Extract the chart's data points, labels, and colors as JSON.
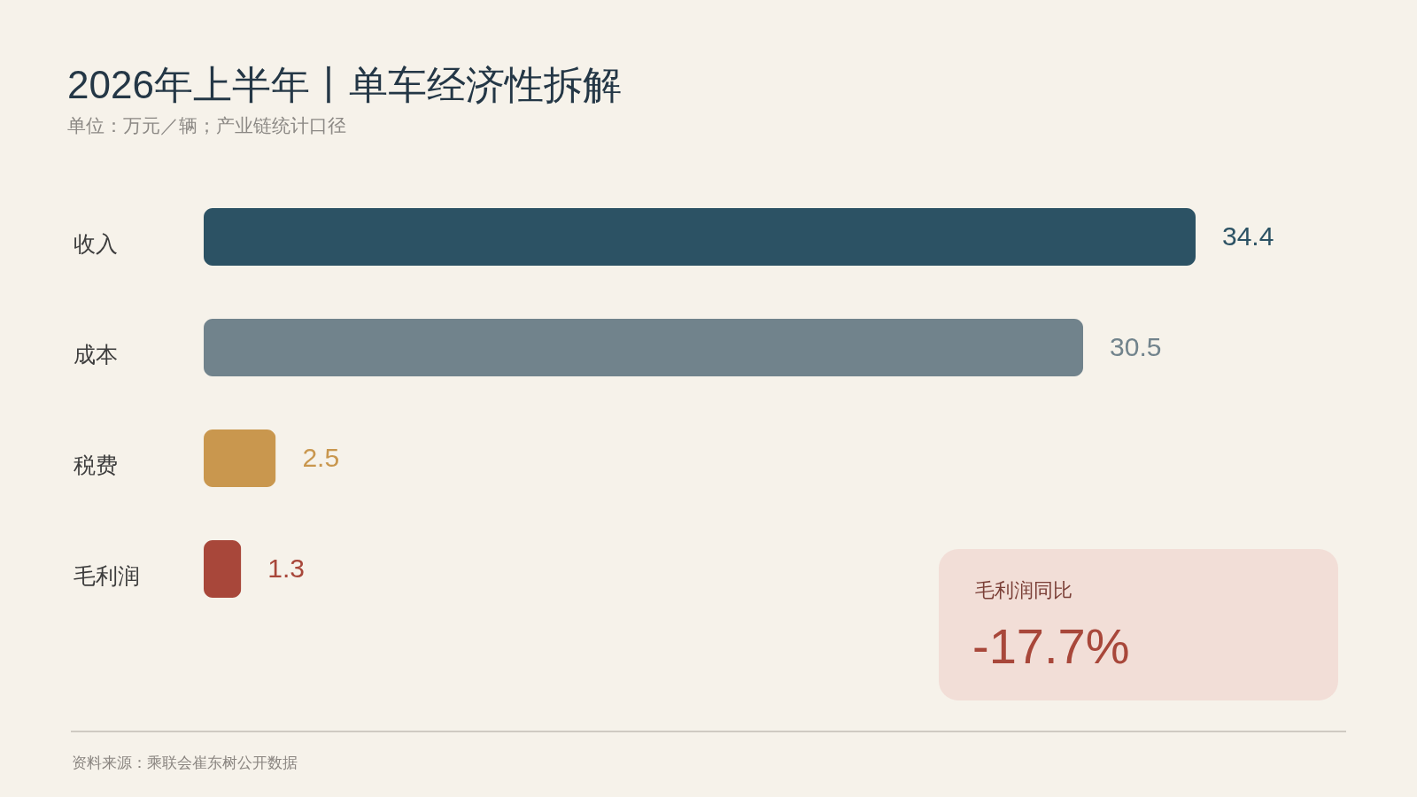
{
  "chart_data": {
    "type": "bar",
    "orientation": "horizontal",
    "title": "2026年上半年丨单车经济性拆解",
    "subtitle": "单位：万元／辆；产业链统计口径",
    "categories": [
      "收入",
      "成本",
      "税费",
      "毛利润"
    ],
    "values": [
      34.4,
      30.5,
      2.5,
      1.3
    ],
    "colors": [
      "#2c5264",
      "#71838c",
      "#c9974e",
      "#a8473a"
    ],
    "data_labels": true,
    "tick_labels": "y",
    "annotations": [
      "毛利润同比",
      "-17.7%",
      "资料来源：乘联会崔东树公开数据"
    ]
  }
}
